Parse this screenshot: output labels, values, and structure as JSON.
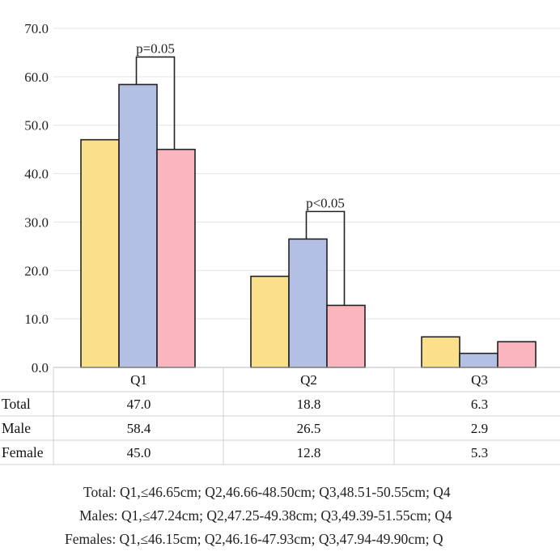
{
  "chart_data": {
    "type": "bar",
    "categories": [
      "Q1",
      "Q2",
      "Q3"
    ],
    "series": [
      {
        "name": "Total",
        "values": [
          47.0,
          18.8,
          6.3
        ],
        "color": "#fbe08c"
      },
      {
        "name": "Male",
        "values": [
          58.4,
          26.5,
          2.9
        ],
        "color": "#b3c0e4"
      },
      {
        "name": "Female",
        "values": [
          45.0,
          12.8,
          5.3
        ],
        "color": "#fbb5bf"
      }
    ],
    "table_values": [
      [
        "47.0",
        "18.8",
        "6.3"
      ],
      [
        "58.4",
        "26.5",
        "2.9"
      ],
      [
        "45.0",
        "12.8",
        "5.3"
      ]
    ],
    "y_ticks": [
      "0.0",
      "10.0",
      "20.0",
      "30.0",
      "40.0",
      "50.0",
      "60.0",
      "70.0"
    ],
    "ylim": [
      0,
      70
    ],
    "grid": true,
    "annotations": [
      {
        "text": "p=0.05",
        "category": "Q1",
        "series_from": "Male",
        "series_to": "Female"
      },
      {
        "text": "p<0.05",
        "category": "Q2",
        "series_from": "Male",
        "series_to": "Female"
      }
    ]
  },
  "notes": [
    "Total: Q1,≤46.65cm; Q2,46.66-48.50cm; Q3,48.51-50.55cm; Q4",
    "Males: Q1,≤47.24cm; Q2,47.25-49.38cm; Q3,49.39-51.55cm; Q4",
    "Females: Q1,≤46.15cm; Q2,46.16-47.93cm; Q3,47.94-49.90cm; Q"
  ]
}
